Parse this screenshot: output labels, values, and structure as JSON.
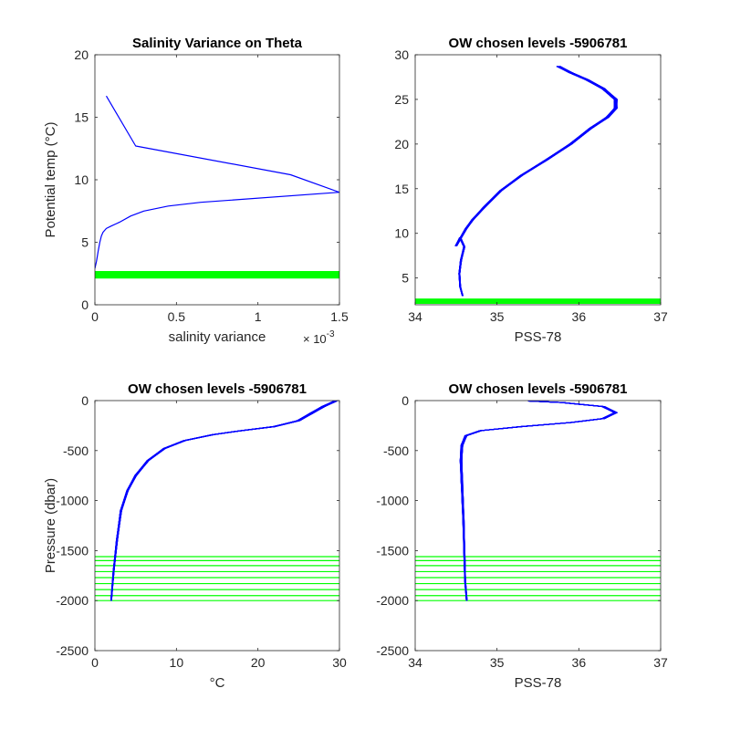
{
  "colors": {
    "profile": "#0000ff",
    "levels": "#00ff00",
    "axes": "#262626"
  },
  "chart_data": [
    {
      "type": "line",
      "title": "Salinity Variance on Theta",
      "xlabel": "salinity variance",
      "ylabel": "Potential temp (°C)",
      "x_exponent": "× 10",
      "x_exponent_power": "-3",
      "xlim": [
        0,
        0.0015
      ],
      "ylim": [
        0,
        20
      ],
      "xticks": [
        0,
        0.0005,
        0.001,
        0.0015
      ],
      "xtick_labels": [
        "0",
        "0.5",
        "1",
        "1.5"
      ],
      "yticks": [
        0,
        5,
        10,
        15,
        20
      ],
      "ytick_labels": [
        "0",
        "5",
        "10",
        "15",
        "20"
      ],
      "series": [
        {
          "x": [
            0.0,
            1e-05,
            2e-05,
            3e-05,
            4e-05,
            5e-05,
            7e-05,
            0.0001,
            0.00015,
            0.00022,
            0.0003,
            0.00045,
            0.00065,
            0.0015,
            0.0012,
            0.00025,
            7e-05
          ],
          "y": [
            2.9,
            3.5,
            4.3,
            5.0,
            5.5,
            5.8,
            6.1,
            6.3,
            6.6,
            7.1,
            7.5,
            7.9,
            8.2,
            9.0,
            10.4,
            12.7,
            16.7
          ]
        }
      ],
      "level_band": {
        "y_from": 2.1,
        "y_to": 2.7
      }
    },
    {
      "type": "line",
      "title": "OW chosen levels -5906781",
      "xlabel": "PSS-78",
      "ylabel": "",
      "xlim": [
        34,
        37
      ],
      "ylim": [
        2,
        30
      ],
      "xticks": [
        34,
        35,
        36,
        37
      ],
      "xtick_labels": [
        "34",
        "35",
        "36",
        "37"
      ],
      "yticks": [
        5,
        10,
        15,
        20,
        25,
        30
      ],
      "ytick_labels": [
        "5",
        "10",
        "15",
        "20",
        "25",
        "30"
      ],
      "series": [
        {
          "x": [
            34.58,
            34.55,
            34.54,
            34.56,
            34.6,
            34.55,
            34.5,
            34.62,
            34.7,
            34.85,
            35.05,
            35.3,
            35.6,
            35.9,
            36.15,
            36.35,
            36.45,
            36.45,
            36.3,
            36.1,
            35.9,
            35.75
          ],
          "y": [
            3.0,
            4.0,
            5.5,
            7.0,
            8.5,
            9.5,
            8.6,
            10.5,
            11.5,
            13.0,
            14.8,
            16.5,
            18.2,
            20.0,
            21.8,
            23.0,
            24.0,
            25.0,
            26.2,
            27.2,
            28.0,
            28.7
          ]
        }
      ],
      "level_band": {
        "y_from": 2.1,
        "y_to": 2.7
      }
    },
    {
      "type": "line",
      "title": "OW chosen levels -5906781",
      "xlabel": "°C",
      "ylabel": "Pressure (dbar)",
      "xlim": [
        0,
        30
      ],
      "ylim": [
        -2500,
        0
      ],
      "xticks": [
        0,
        10,
        20,
        30
      ],
      "xtick_labels": [
        "0",
        "10",
        "20",
        "30"
      ],
      "yticks": [
        -2500,
        -2000,
        -1500,
        -1000,
        -500,
        0
      ],
      "ytick_labels": [
        "-2500",
        "-2000",
        "-1500",
        "-1000",
        "-500",
        "0"
      ],
      "series": [
        {
          "x": [
            2.0,
            2.3,
            2.7,
            3.2,
            4.0,
            5.0,
            6.5,
            8.5,
            11.0,
            14.5,
            18.0,
            22.0,
            25.0,
            26.5,
            28.0,
            29.5
          ],
          "y": [
            -2000,
            -1700,
            -1400,
            -1100,
            -900,
            -750,
            -600,
            -480,
            -400,
            -340,
            -300,
            -260,
            -200,
            -130,
            -60,
            -5
          ]
        }
      ],
      "levels": [
        -2000,
        -1950,
        -1890,
        -1830,
        -1770,
        -1710,
        -1650,
        -1600,
        -1560
      ]
    },
    {
      "type": "line",
      "title": "OW chosen levels -5906781",
      "xlabel": "PSS-78",
      "ylabel": "",
      "xlim": [
        34,
        37
      ],
      "ylim": [
        -2500,
        0
      ],
      "xticks": [
        34,
        35,
        36,
        37
      ],
      "xtick_labels": [
        "34",
        "35",
        "36",
        "37"
      ],
      "yticks": [
        -2500,
        -2000,
        -1500,
        -1000,
        -500,
        0
      ],
      "ytick_labels": [
        "-2500",
        "-2000",
        "-1500",
        "-1000",
        "-500",
        "0"
      ],
      "series": [
        {
          "x": [
            34.63,
            34.61,
            34.6,
            34.59,
            34.58,
            34.57,
            34.56,
            34.57,
            34.62,
            34.8,
            35.3,
            35.9,
            36.3,
            36.45,
            36.3,
            35.8,
            35.4
          ],
          "y": [
            -2000,
            -1800,
            -1500,
            -1200,
            -1000,
            -800,
            -600,
            -450,
            -350,
            -300,
            -260,
            -220,
            -180,
            -120,
            -60,
            -20,
            -5
          ]
        }
      ],
      "levels": [
        -2000,
        -1950,
        -1890,
        -1830,
        -1770,
        -1710,
        -1650,
        -1600,
        -1560
      ]
    }
  ]
}
